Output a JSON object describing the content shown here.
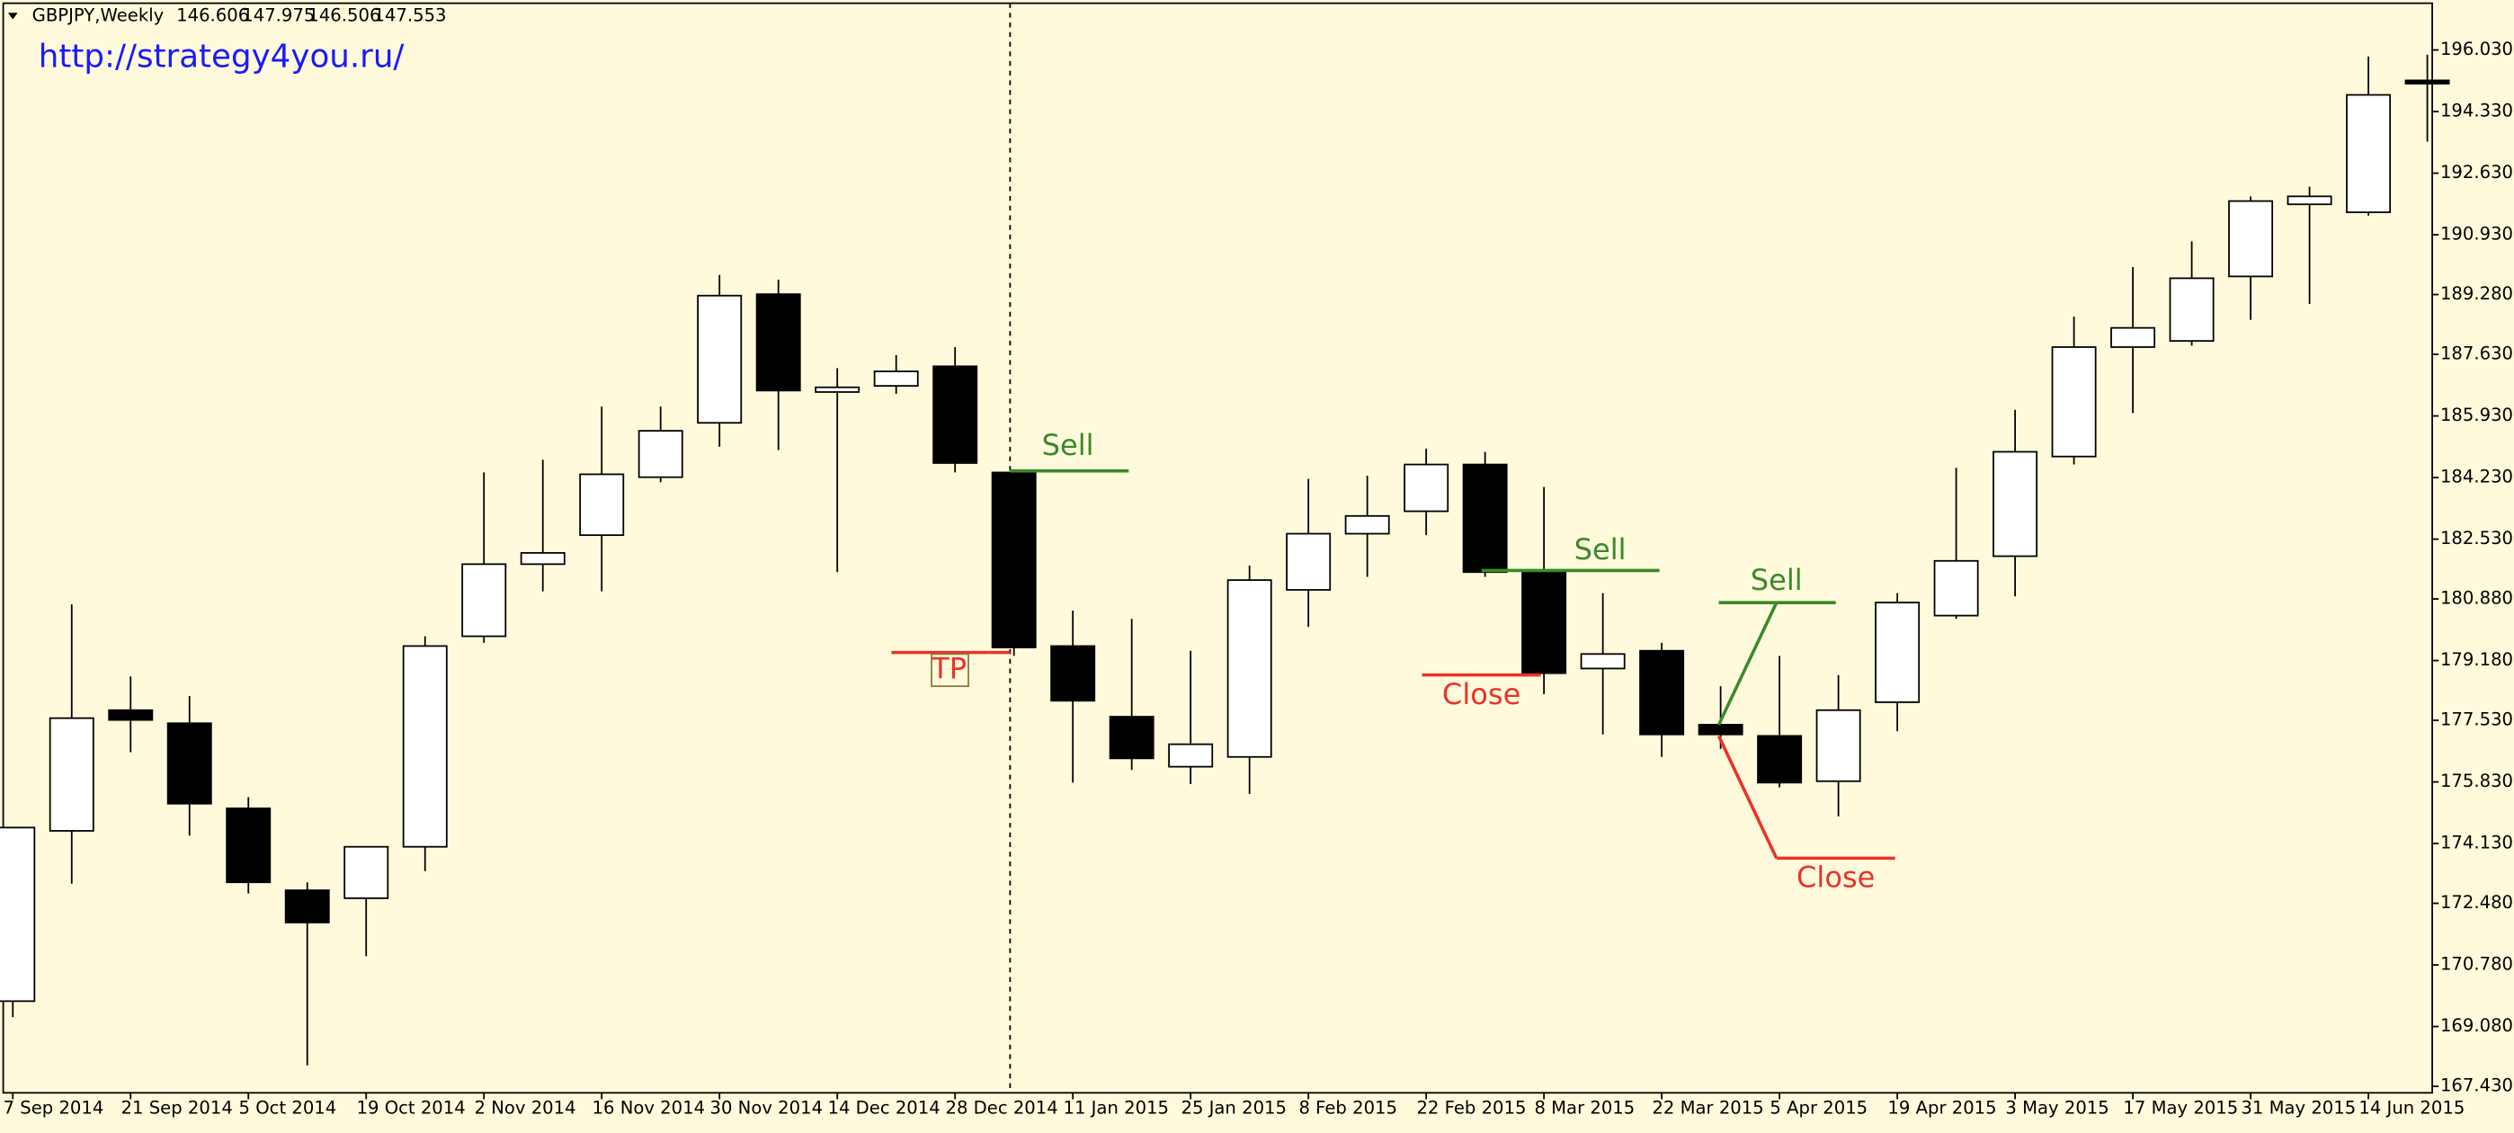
{
  "chart_data": {
    "type": "candlestick",
    "title": "GBPJPY,Weekly",
    "header_values": [
      146.606,
      147.975,
      146.506,
      147.553
    ],
    "watermark": "http://strategy4you.ru/",
    "categories": [
      "7 Sep 2014",
      null,
      "21 Sep 2014",
      null,
      "5 Oct 2014",
      null,
      "19 Oct 2014",
      null,
      "2 Nov 2014",
      null,
      "16 Nov 2014",
      null,
      "30 Nov 2014",
      null,
      "14 Dec 2014",
      null,
      "28 Dec 2014",
      null,
      "11 Jan 2015",
      null,
      "25 Jan 2015",
      null,
      "8 Feb 2015",
      null,
      "22 Feb 2015",
      null,
      "8 Mar 2015",
      null,
      "22 Mar 2015",
      null,
      "5 Apr 2015",
      null,
      "19 Apr 2015",
      null,
      "3 May 2015",
      null,
      "17 May 2015",
      null,
      "31 May 2015",
      null,
      "14 Jun 2015",
      null
    ],
    "open": [
      169.78,
      174.48,
      177.81,
      177.45,
      175.1,
      172.84,
      172.62,
      174.04,
      179.85,
      181.84,
      182.64,
      184.24,
      185.74,
      189.29,
      186.59,
      186.76,
      187.3,
      184.37,
      179.58,
      177.63,
      176.25,
      176.52,
      181.13,
      182.68,
      183.3,
      184.59,
      181.62,
      178.96,
      179.45,
      177.41,
      177.1,
      175.85,
      178.03,
      180.42,
      182.06,
      184.81,
      187.83,
      188.0,
      189.78,
      191.77,
      191.55,
      195.19
    ],
    "high": [
      174.57,
      180.73,
      178.74,
      178.2,
      175.41,
      173.06,
      174.04,
      179.85,
      184.37,
      184.72,
      186.19,
      186.19,
      189.82,
      189.69,
      187.25,
      187.61,
      187.83,
      184.37,
      180.56,
      180.33,
      179.45,
      181.8,
      184.19,
      184.28,
      185.03,
      184.94,
      183.97,
      181.04,
      179.67,
      178.47,
      179.31,
      178.78,
      181.04,
      184.5,
      186.1,
      188.67,
      190.04,
      190.75,
      191.99,
      192.26,
      195.85,
      195.9
    ],
    "low": [
      169.34,
      173.02,
      176.65,
      174.35,
      172.75,
      168.01,
      171.02,
      173.37,
      179.67,
      181.09,
      181.09,
      184.1,
      185.08,
      184.99,
      181.62,
      186.54,
      184.37,
      179.31,
      175.81,
      176.16,
      175.77,
      175.5,
      180.11,
      181.49,
      182.64,
      181.49,
      178.25,
      177.14,
      176.52,
      176.74,
      175.68,
      174.88,
      177.23,
      180.33,
      180.95,
      184.59,
      186.01,
      187.87,
      188.58,
      189.02,
      191.46,
      193.5
    ],
    "close": [
      174.57,
      177.59,
      177.54,
      175.23,
      173.06,
      171.95,
      174.04,
      179.58,
      181.84,
      182.15,
      184.32,
      185.52,
      189.25,
      186.63,
      186.72,
      187.16,
      184.63,
      179.54,
      178.07,
      176.48,
      176.87,
      181.4,
      182.68,
      183.17,
      184.59,
      181.62,
      178.83,
      179.36,
      177.14,
      177.14,
      175.81,
      177.81,
      180.78,
      181.93,
      184.94,
      187.83,
      188.36,
      189.73,
      191.86,
      191.99,
      194.79,
      195.1
    ],
    "up_color": "#ffffff",
    "down_color": "#000000",
    "ylim": [
      167.25,
      197.32
    ],
    "yticks": [
      {
        "value": 196.03,
        "label": "196.030"
      },
      {
        "value": 194.33,
        "label": "194.330"
      },
      {
        "value": 192.63,
        "label": "192.630"
      },
      {
        "value": 190.93,
        "label": "190.930"
      },
      {
        "value": 189.28,
        "label": "189.280"
      },
      {
        "value": 187.63,
        "label": "187.630"
      },
      {
        "value": 185.93,
        "label": "185.930"
      },
      {
        "value": 184.23,
        "label": "184.230"
      },
      {
        "value": 182.53,
        "label": "182.530"
      },
      {
        "value": 180.88,
        "label": "180.880"
      },
      {
        "value": 179.18,
        "label": "179.180"
      },
      {
        "value": 177.53,
        "label": "177.530"
      },
      {
        "value": 175.83,
        "label": "175.830"
      },
      {
        "value": 174.13,
        "label": "174.130"
      },
      {
        "value": 172.48,
        "label": "172.480"
      },
      {
        "value": 170.78,
        "label": "170.780"
      },
      {
        "value": 169.08,
        "label": "169.080"
      },
      {
        "value": 167.43,
        "label": "167.430"
      }
    ],
    "annotations": [
      {
        "text": "Sell",
        "color": "#3a8a2a"
      },
      {
        "text": "TP",
        "color": "#e8332a"
      },
      {
        "text": "Sell",
        "color": "#3a8a2a"
      },
      {
        "text": "Close",
        "color": "#e8332a"
      },
      {
        "text": "Sell",
        "color": "#3a8a2a"
      },
      {
        "text": "Close",
        "color": "#e8332a"
      }
    ]
  }
}
